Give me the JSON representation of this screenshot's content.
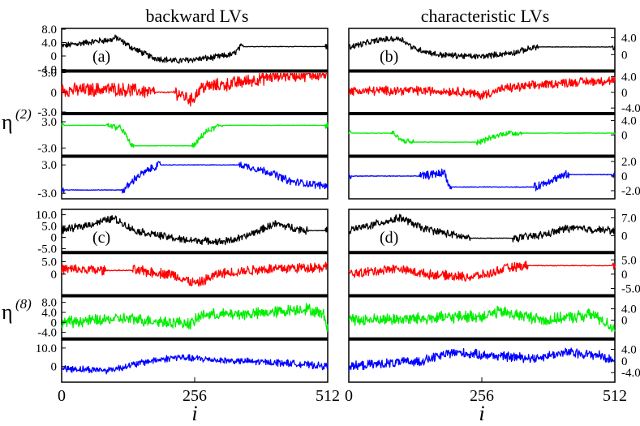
{
  "chart_data": {
    "type": "line",
    "column_titles": [
      "backward LVs",
      "characteristic LVs"
    ],
    "y_group_labels": [
      {
        "symbol": "η",
        "superscript": "(2)"
      },
      {
        "symbol": "η",
        "superscript": "(8)"
      }
    ],
    "xlabel": "i",
    "x_ticks": [
      0,
      256,
      512
    ],
    "xlim": [
      0,
      512
    ],
    "series_colors": [
      "#000000",
      "#ff0000",
      "#00ee00",
      "#0000ff"
    ],
    "panels": [
      {
        "label": "(a)",
        "column": 0,
        "group": 0,
        "rows": [
          {
            "ylim": [
              -4,
              8
            ],
            "ticks": [
              -4,
              0,
              4,
              8
            ],
            "tick_labels": [
              "-4.0",
              "0",
              "4.0",
              "8.0"
            ],
            "segments": [
              [
                0,
                3
              ],
              [
                70,
                4.5
              ],
              [
                95,
                4.8
              ],
              [
                105,
                5.5
              ],
              [
                135,
                2.5
              ],
              [
                175,
                -0.5
              ],
              [
                220,
                -1.5
              ],
              [
                290,
                -0.5
              ],
              [
                330,
                0.5
              ],
              [
                345,
                2.8
              ],
              [
                512,
                2.8
              ]
            ],
            "amp": 0.8
          },
          {
            "ylim": [
              -3,
              3
            ],
            "ticks": [
              -3,
              0,
              3
            ],
            "tick_labels": [
              "-3.0",
              "0",
              "3.0"
            ],
            "segments": [
              [
                0,
                0.3
              ],
              [
                100,
                0.5
              ],
              [
                140,
                0.3
              ],
              [
                175,
                0.0
              ],
              [
                220,
                0.0
              ],
              [
                250,
                -1.2
              ],
              [
                270,
                0.8
              ],
              [
                320,
                1.2
              ],
              [
                420,
                2.6
              ],
              [
                500,
                2.8
              ],
              [
                512,
                2.6
              ]
            ],
            "amp": 0.9
          },
          {
            "ylim": [
              -4.5,
              4.5
            ],
            "ticks": [
              -3,
              3
            ],
            "tick_labels": [
              "-3.0",
              "3.0"
            ],
            "segments": [
              [
                0,
                2.2
              ],
              [
                90,
                2.2
              ],
              [
                115,
                1.5
              ],
              [
                135,
                -2.5
              ],
              [
                255,
                -2.5
              ],
              [
                275,
                0.5
              ],
              [
                305,
                2.2
              ],
              [
                512,
                2.2
              ]
            ],
            "amp": 0.6
          },
          {
            "ylim": [
              -4,
              4.5
            ],
            "ticks": [
              -3,
              3
            ],
            "tick_labels": [
              "-3.0",
              "3.0"
            ],
            "segments": [
              [
                0,
                -2.3
              ],
              [
                120,
                -2.3
              ],
              [
                145,
                0.5
              ],
              [
                185,
                3.0
              ],
              [
                345,
                3.0
              ],
              [
                400,
                1.5
              ],
              [
                440,
                -0.5
              ],
              [
                512,
                -1.5
              ]
            ],
            "amp": 0.7
          }
        ]
      },
      {
        "label": "(b)",
        "column": 1,
        "group": 0,
        "rows": [
          {
            "ylim": [
              -3.5,
              6
            ],
            "ticks": [
              0,
              4
            ],
            "tick_labels": [
              "0",
              "4.0"
            ],
            "segments": [
              [
                0,
                1.8
              ],
              [
                60,
                3.5
              ],
              [
                100,
                3.8
              ],
              [
                125,
                1.5
              ],
              [
                170,
                0.0
              ],
              [
                250,
                -0.5
              ],
              [
                320,
                0.5
              ],
              [
                360,
                1.8
              ],
              [
                512,
                1.8
              ]
            ],
            "amp": 0.6
          },
          {
            "ylim": [
              -5,
              5
            ],
            "ticks": [
              -4,
              0,
              4
            ],
            "tick_labels": [
              "-4.0",
              "0",
              "4.0"
            ],
            "segments": [
              [
                0,
                0.3
              ],
              [
                100,
                0.5
              ],
              [
                220,
                0.2
              ],
              [
                255,
                -0.8
              ],
              [
                300,
                1.0
              ],
              [
                420,
                2.5
              ],
              [
                512,
                3.0
              ]
            ],
            "amp": 1.0
          },
          {
            "ylim": [
              -5.5,
              5.5
            ],
            "ticks": [
              0,
              4
            ],
            "tick_labels": [
              "0",
              "4.0"
            ],
            "segments": [
              [
                0,
                0.5
              ],
              [
                85,
                0.5
              ],
              [
                100,
                -1.5
              ],
              [
                120,
                -2.0
              ],
              [
                250,
                -2.0
              ],
              [
                300,
                0.5
              ],
              [
                330,
                0.5
              ],
              [
                512,
                0.5
              ]
            ],
            "amp": 0.7
          },
          {
            "ylim": [
              -3,
              2.5
            ],
            "ticks": [
              -2,
              0,
              2
            ],
            "tick_labels": [
              "-2.0",
              "0",
              "2.0"
            ],
            "segments": [
              [
                0,
                0.0
              ],
              [
                140,
                0.0
              ],
              [
                185,
                0.5
              ],
              [
                193,
                -1.5
              ],
              [
                360,
                -1.5
              ],
              [
                390,
                -0.5
              ],
              [
                420,
                0.2
              ],
              [
                512,
                0.2
              ]
            ],
            "amp": 0.5
          }
        ]
      },
      {
        "label": "(c)",
        "column": 0,
        "group": 1,
        "rows": [
          {
            "ylim": [
              -6,
              12
            ],
            "ticks": [
              -5,
              0,
              5,
              10
            ],
            "tick_labels": [
              "-5.0",
              "0",
              "5.0",
              "10.0"
            ],
            "segments": [
              [
                0,
                3
              ],
              [
                60,
                6
              ],
              [
                100,
                8.5
              ],
              [
                140,
                3
              ],
              [
                230,
                -1
              ],
              [
                310,
                -2
              ],
              [
                350,
                0
              ],
              [
                410,
                6
              ],
              [
                470,
                3
              ],
              [
                512,
                3
              ]
            ],
            "amp": 1.4
          },
          {
            "ylim": [
              -8,
              8
            ],
            "ticks": [
              0,
              5
            ],
            "tick_labels": [
              "0",
              "5.0"
            ],
            "segments": [
              [
                0,
                2
              ],
              [
                80,
                1.5
              ],
              [
                140,
                1.5
              ],
              [
                210,
                0
              ],
              [
                260,
                -4
              ],
              [
                300,
                0
              ],
              [
                380,
                2
              ],
              [
                512,
                3
              ]
            ],
            "amp": 1.8
          },
          {
            "ylim": [
              -6,
              10
            ],
            "ticks": [
              -4,
              0,
              4,
              8
            ],
            "tick_labels": [
              "-4.0",
              "0",
              "4.0",
              "8.0"
            ],
            "segments": [
              [
                0,
                0
              ],
              [
                120,
                1.5
              ],
              [
                250,
                -0.5
              ],
              [
                270,
                3
              ],
              [
                380,
                3.5
              ],
              [
                470,
                5.5
              ],
              [
                505,
                3
              ],
              [
                512,
                -2
              ]
            ],
            "amp": 2.0
          },
          {
            "ylim": [
              -8,
              14
            ],
            "ticks": [
              0,
              10
            ],
            "tick_labels": [
              "0",
              "10.0"
            ],
            "segments": [
              [
                0,
                -1
              ],
              [
                90,
                -2
              ],
              [
                170,
                3
              ],
              [
                220,
                5
              ],
              [
                330,
                3
              ],
              [
                430,
                2
              ],
              [
                512,
                0
              ]
            ],
            "amp": 1.6
          }
        ]
      },
      {
        "label": "(d)",
        "column": 1,
        "group": 1,
        "rows": [
          {
            "ylim": [
              -6,
              10
            ],
            "ticks": [
              0,
              7
            ],
            "tick_labels": [
              "0",
              "7.0"
            ],
            "segments": [
              [
                0,
                2
              ],
              [
                60,
                5
              ],
              [
                100,
                7
              ],
              [
                140,
                3
              ],
              [
                230,
                -1
              ],
              [
                320,
                -1
              ],
              [
                380,
                0.5
              ],
              [
                420,
                3
              ],
              [
                512,
                2
              ]
            ],
            "amp": 1.3
          },
          {
            "ylim": [
              -7,
              7
            ],
            "ticks": [
              -5,
              0,
              5
            ],
            "tick_labels": [
              "-5.0",
              "0",
              "5.0"
            ],
            "segments": [
              [
                0,
                0
              ],
              [
                90,
                2
              ],
              [
                150,
                0
              ],
              [
                230,
                -1
              ],
              [
                270,
                0
              ],
              [
                300,
                2
              ],
              [
                340,
                3
              ],
              [
                512,
                3
              ]
            ],
            "amp": 1.4
          },
          {
            "ylim": [
              -6,
              8
            ],
            "ticks": [
              0,
              4
            ],
            "tick_labels": [
              "0",
              "4.0"
            ],
            "segments": [
              [
                0,
                0
              ],
              [
                120,
                0.5
              ],
              [
                260,
                1.5
              ],
              [
                290,
                3
              ],
              [
                380,
                0
              ],
              [
                470,
                2
              ],
              [
                512,
                -3
              ]
            ],
            "amp": 1.8
          },
          {
            "ylim": [
              -7,
              7
            ],
            "ticks": [
              -4,
              0,
              4
            ],
            "tick_labels": [
              "-4.0",
              "0",
              "4.0"
            ],
            "segments": [
              [
                0,
                -2
              ],
              [
                60,
                -1
              ],
              [
                140,
                0
              ],
              [
                200,
                3
              ],
              [
                260,
                2
              ],
              [
                360,
                1
              ],
              [
                420,
                3
              ],
              [
                480,
                2
              ],
              [
                512,
                0
              ]
            ],
            "amp": 1.4
          }
        ]
      }
    ]
  }
}
